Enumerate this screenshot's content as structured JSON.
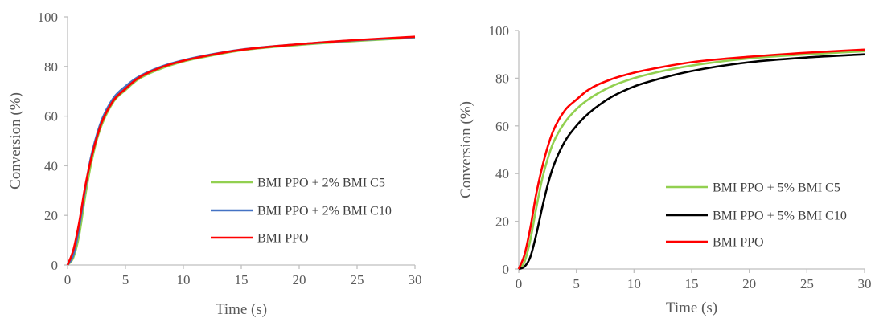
{
  "chart_data": [
    {
      "type": "line",
      "xlabel": "Time (s)",
      "ylabel": "Conversion (%)",
      "xlim": [
        0,
        30
      ],
      "ylim": [
        0,
        100
      ],
      "xticks": [
        "0",
        "5",
        "10",
        "15",
        "20",
        "25",
        "30"
      ],
      "yticks": [
        "0",
        "20",
        "40",
        "60",
        "80",
        "100"
      ],
      "grid": false,
      "legend_position": "right",
      "series": [
        {
          "name": "BMI PPO + 2% BMI C5",
          "color": "#92d050",
          "x": [
            0,
            0.5,
            1,
            1.5,
            2,
            2.5,
            3,
            4,
            5,
            6,
            8,
            10,
            12,
            15,
            20,
            25,
            30
          ],
          "y": [
            0,
            3,
            12,
            27,
            40,
            50,
            57,
            66,
            70.5,
            74.5,
            79,
            82,
            84,
            86.5,
            88.7,
            90.3,
            91.6
          ]
        },
        {
          "name": "BMI PPO + 2%  BMI C10",
          "color": "#4472c4",
          "x": [
            0,
            0.5,
            1,
            1.5,
            2,
            2.5,
            3,
            4,
            5,
            6,
            8,
            10,
            12,
            15,
            20,
            25,
            30
          ],
          "y": [
            0,
            4,
            15,
            30,
            43,
            52,
            59,
            67.5,
            72,
            75.5,
            79.8,
            82.5,
            84.5,
            86.8,
            89,
            90.6,
            91.8
          ]
        },
        {
          "name": "BMI PPO",
          "color": "#ff0000",
          "x": [
            0,
            0.5,
            1,
            1.5,
            2,
            2.5,
            3,
            4,
            5,
            6,
            8,
            10,
            12,
            15,
            20,
            25,
            30
          ],
          "y": [
            0,
            6,
            17,
            31,
            42,
            51,
            58,
            66.5,
            71,
            75,
            79.5,
            82.3,
            84.3,
            86.7,
            89,
            90.7,
            92
          ]
        }
      ]
    },
    {
      "type": "line",
      "xlabel": "Time (s)",
      "ylabel": "Conversion (%)",
      "xlim": [
        0,
        30
      ],
      "ylim": [
        0,
        100
      ],
      "xticks": [
        "0",
        "5",
        "10",
        "15",
        "20",
        "25",
        "30"
      ],
      "yticks": [
        "0",
        "20",
        "40",
        "60",
        "80",
        "100"
      ],
      "grid": false,
      "legend_position": "right",
      "series": [
        {
          "name": "BMI PPO + 5% BMI C5",
          "color": "#92d050",
          "x": [
            0,
            0.5,
            1,
            1.5,
            2,
            2.5,
            3,
            4,
            5,
            6,
            8,
            10,
            12,
            15,
            20,
            25,
            30
          ],
          "y": [
            0,
            3,
            12,
            25,
            37,
            46,
            53,
            61.5,
            67,
            71,
            76.5,
            80,
            82.5,
            85.3,
            88.3,
            90,
            91.3
          ]
        },
        {
          "name": "BMI PPO + 5%  BMI C10",
          "color": "#000000",
          "x": [
            0,
            0.5,
            1,
            1.5,
            2,
            2.5,
            3,
            4,
            5,
            6,
            8,
            10,
            12,
            15,
            20,
            25,
            30
          ],
          "y": [
            0,
            1,
            5,
            14,
            25,
            35,
            43,
            53.5,
            60,
            65,
            72,
            76.5,
            79.5,
            83,
            86.7,
            88.7,
            90
          ]
        },
        {
          "name": "BMI PPO",
          "color": "#ff0000",
          "x": [
            0,
            0.5,
            1,
            1.5,
            2,
            2.5,
            3,
            4,
            5,
            6,
            8,
            10,
            12,
            15,
            20,
            25,
            30
          ],
          "y": [
            0,
            6,
            17,
            31,
            42,
            51,
            58,
            66.5,
            71,
            75,
            79.5,
            82.3,
            84.3,
            86.7,
            89,
            90.7,
            92
          ]
        }
      ]
    }
  ]
}
